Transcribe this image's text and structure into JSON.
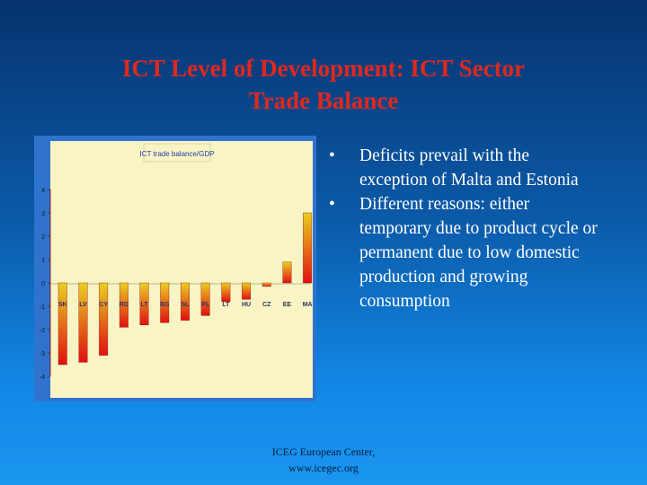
{
  "title_line1": "ICT Level of Development: ICT Sector",
  "title_line2": "Trade Balance",
  "bullets": [
    {
      "marker": "•",
      "text": "Deficits prevail with the exception of Malta and Estonia"
    },
    {
      "marker": "•",
      "text": "Different reasons: either temporary due to product cycle or permanent due to low domestic production and growing consumption"
    }
  ],
  "footer": {
    "line1": "ICEG European Center,",
    "line2": "www.icegec.org"
  },
  "colors": {
    "title": "#e0281e",
    "bar_top": "#e8d020",
    "bar_bottom": "#e01010",
    "plot_bg": "#f8f4c4",
    "axis": "#8b0000"
  },
  "chart_data": {
    "type": "bar",
    "title": "ICT trade balance/GDP",
    "categories": [
      "SK",
      "LV",
      "CY",
      "RO",
      "LT",
      "BG",
      "SL",
      "PL",
      "LT",
      "HU",
      "CZ",
      "EE",
      "MA"
    ],
    "values": [
      -3.5,
      -3.4,
      -3.1,
      -1.9,
      -1.8,
      -1.7,
      -1.6,
      -1.4,
      -0.8,
      -0.7,
      -0.15,
      0.9,
      3.0
    ],
    "ylim": [
      -4,
      4
    ],
    "yticks": [
      "4",
      "3",
      "2",
      "1",
      "0",
      "-1",
      "-2",
      "-3",
      "-4"
    ],
    "xlabel": "",
    "ylabel": "",
    "grid": false,
    "legend": "none"
  }
}
